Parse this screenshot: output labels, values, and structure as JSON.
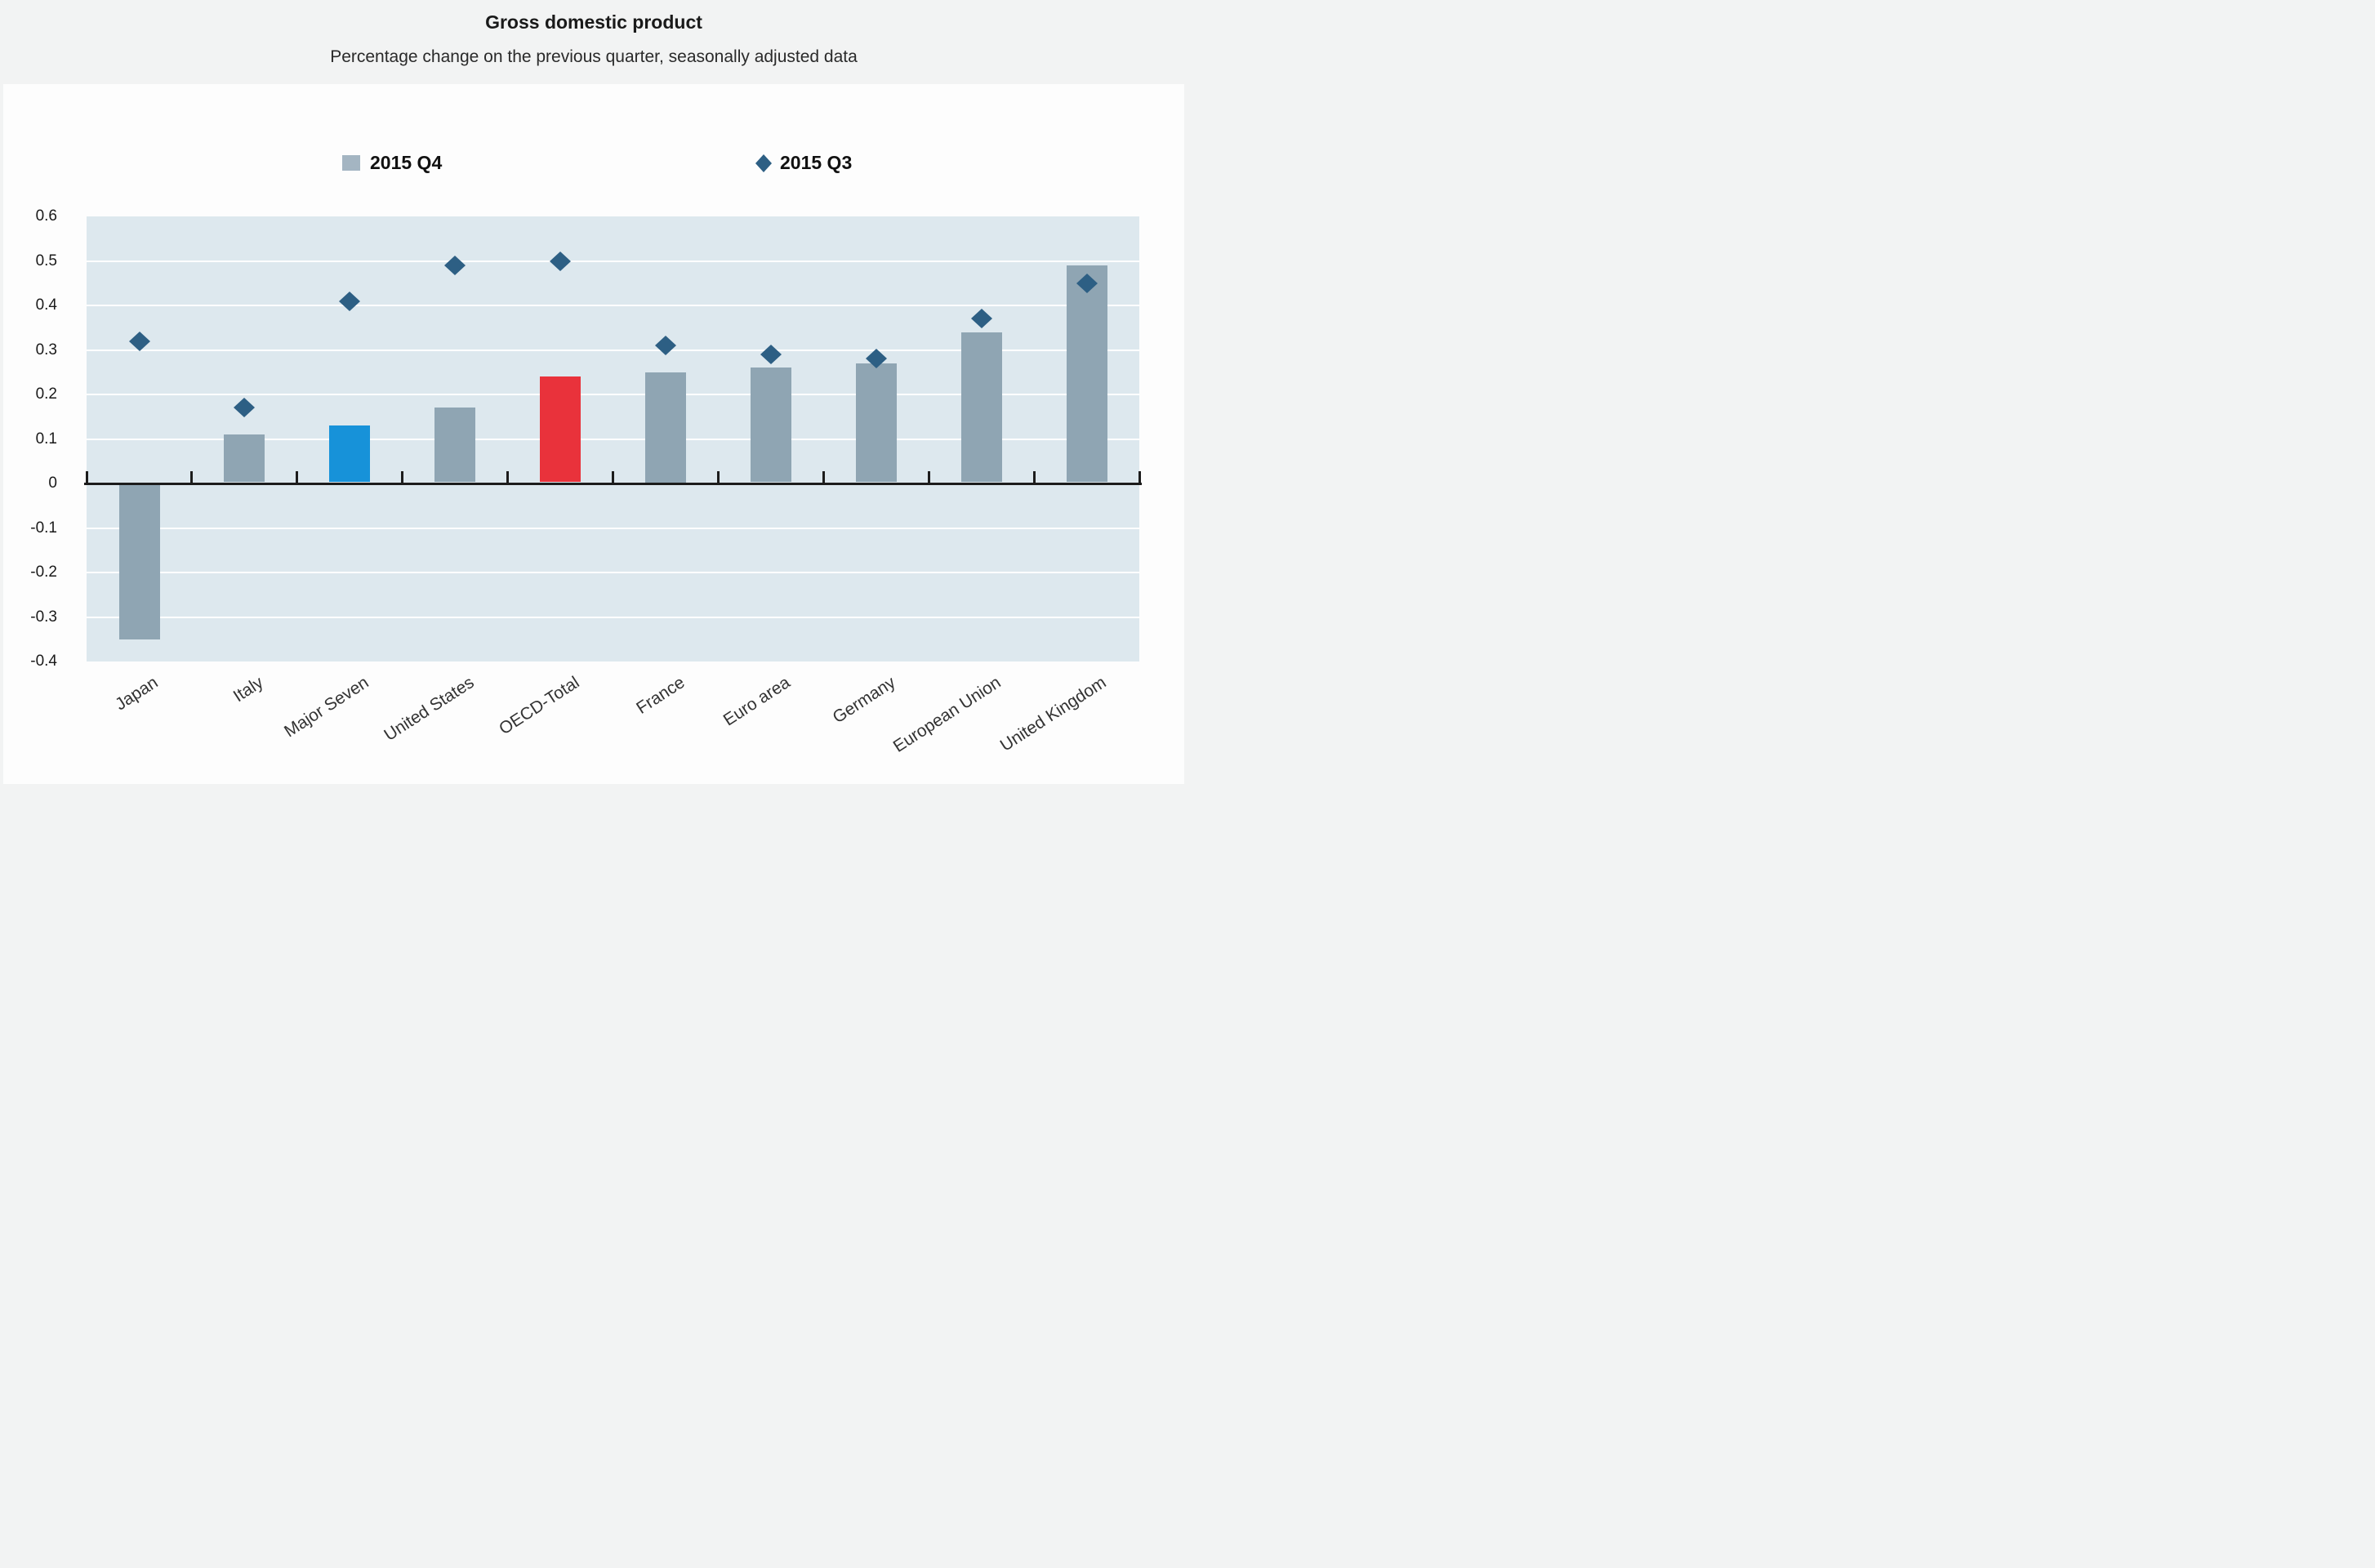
{
  "header": {
    "title": "Gross domestic product",
    "subtitle": "Percentage change on the previous quarter, seasonally adjusted data"
  },
  "legend": {
    "q4_label": "2015 Q4",
    "q3_label": "2015 Q3"
  },
  "colors": {
    "page_bg": "#f2f3f3",
    "panel_bg": "#fdfdfd",
    "plot_bg": "#dde8ee",
    "gridline": "#ffffff",
    "zero_axis": "#1c1c1c",
    "bar_default": "#8fa5b3",
    "bar_highlight_blue": "#1792d9",
    "bar_highlight_red": "#e9323b",
    "diamond": "#2d5f84",
    "legend_square": "#a4b5c2",
    "axis_text": "#1a1a1a",
    "x_label_text": "#333333"
  },
  "chart_data": {
    "type": "bar",
    "title": "Gross domestic product",
    "subtitle": "Percentage change on the previous quarter, seasonally adjusted data",
    "categories": [
      "Japan",
      "Italy",
      "Major Seven",
      "United States",
      "OECD-Total",
      "France",
      "Euro area",
      "Germany",
      "European Union",
      "United Kingdom"
    ],
    "series": [
      {
        "name": "2015 Q4",
        "type": "bar",
        "values": [
          -0.35,
          0.11,
          0.13,
          0.17,
          0.24,
          0.25,
          0.26,
          0.27,
          0.34,
          0.49
        ]
      },
      {
        "name": "2015 Q3",
        "type": "scatter",
        "marker": "diamond",
        "values": [
          0.32,
          0.17,
          0.41,
          0.49,
          0.5,
          0.31,
          0.29,
          0.28,
          0.37,
          0.45
        ]
      }
    ],
    "highlighted_bars": {
      "Major Seven": "#1792d9",
      "OECD-Total": "#e9323b"
    },
    "ylabel": "",
    "xlabel": "",
    "ylim": [
      -0.4,
      0.6
    ],
    "yticks": [
      0.6,
      0.5,
      0.4,
      0.3,
      0.2,
      0.1,
      0,
      -0.1,
      -0.2,
      -0.3,
      -0.4
    ],
    "grid": true,
    "legend_position": "top"
  }
}
